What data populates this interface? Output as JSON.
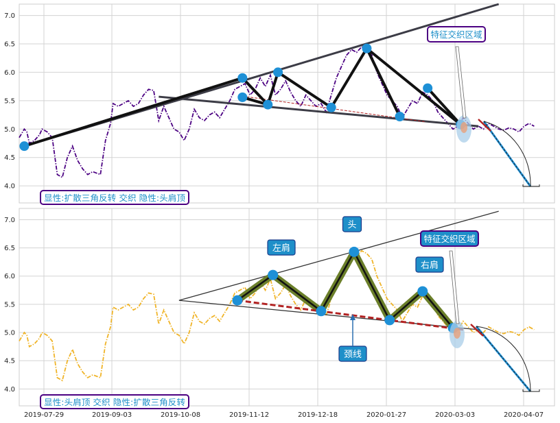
{
  "chart_data": [
    {
      "type": "line",
      "panel": "top",
      "ylim": [
        3.7,
        7.2
      ],
      "yticks": [
        "4.0",
        "4.5",
        "5.0",
        "5.5",
        "6.0",
        "6.5",
        "7.0"
      ],
      "grid": true,
      "series": [
        {
          "color": "#4b0082",
          "style": "dash-dot",
          "x": [
            1,
            3,
            4,
            5,
            7,
            9,
            10,
            12,
            14,
            16,
            18,
            20,
            22,
            24,
            26,
            28,
            30,
            33,
            35,
            37,
            38,
            40,
            42,
            44,
            46,
            48,
            50,
            52,
            54,
            56,
            58,
            60,
            62,
            64,
            66,
            68,
            70,
            72,
            74,
            76,
            78,
            80,
            82,
            84,
            86,
            88,
            90,
            92,
            94,
            96,
            98,
            100,
            102,
            104,
            106,
            108,
            110,
            112,
            114,
            116,
            118,
            120,
            122,
            124,
            126,
            128,
            130,
            132,
            134,
            136,
            138,
            140,
            142,
            144,
            146,
            148,
            150,
            152,
            154,
            156,
            158,
            160,
            162,
            164,
            166,
            168,
            170,
            172,
            174,
            176,
            178,
            180,
            182,
            184,
            186,
            188,
            190,
            192,
            194,
            196,
            198,
            200,
            202,
            204
          ],
          "values": [
            4.85,
            5.0,
            4.95,
            4.75,
            4.8,
            4.9,
            5.0,
            4.95,
            4.85,
            4.2,
            4.15,
            4.5,
            4.7,
            4.45,
            4.3,
            4.2,
            4.25,
            4.2,
            4.8,
            5.1,
            5.45,
            5.4,
            5.45,
            5.5,
            5.4,
            5.45,
            5.6,
            5.7,
            5.68,
            5.15,
            5.4,
            5.2,
            5.0,
            4.95,
            4.8,
            5.0,
            5.35,
            5.2,
            5.15,
            5.25,
            5.3,
            5.2,
            5.35,
            5.5,
            5.7,
            5.75,
            5.8,
            5.6,
            5.7,
            5.9,
            5.75,
            5.95,
            5.6,
            5.7,
            5.85,
            5.65,
            5.5,
            5.4,
            5.6,
            5.5,
            5.4,
            5.45,
            5.3,
            5.6,
            5.9,
            6.1,
            6.3,
            6.4,
            6.35,
            6.45,
            6.4,
            6.3,
            6.0,
            5.8,
            5.6,
            5.5,
            5.4,
            5.2,
            5.35,
            5.5,
            5.45,
            5.65,
            5.6,
            5.5,
            5.3,
            5.2,
            5.1,
            5.0,
            5.05,
            5.2,
            5.1,
            5.0,
            5.05,
            5.0,
            5.1,
            5.05,
            5.0,
            4.98,
            5.02,
            5.0,
            4.95,
            5.05,
            5.1,
            5.05
          ]
        }
      ],
      "label_box": "显性:扩散三角反转 交织 隐性:头肩顶",
      "callout": "特征交织区域"
    },
    {
      "type": "line",
      "panel": "bottom",
      "ylim": [
        3.7,
        7.2
      ],
      "yticks": [
        "4.0",
        "4.5",
        "5.0",
        "5.5",
        "6.0",
        "6.5",
        "7.0"
      ],
      "xticks": [
        "2019-07-29",
        "2019-09-03",
        "2019-10-08",
        "2019-11-12",
        "2019-12-18",
        "2020-01-27",
        "2020-03-03",
        "2020-04-07"
      ],
      "grid": true,
      "series": [
        {
          "color": "#f0b428",
          "style": "dash-dot",
          "x": [
            1,
            3,
            4,
            5,
            7,
            9,
            10,
            12,
            14,
            16,
            18,
            20,
            22,
            24,
            26,
            28,
            30,
            33,
            35,
            37,
            38,
            40,
            42,
            44,
            46,
            48,
            50,
            52,
            54,
            56,
            58,
            60,
            62,
            64,
            66,
            68,
            70,
            72,
            74,
            76,
            78,
            80,
            82,
            84,
            86,
            88,
            90,
            92,
            94,
            96,
            98,
            100,
            102,
            104,
            106,
            108,
            110,
            112,
            114,
            116,
            118,
            120,
            122,
            124,
            126,
            128,
            130,
            132,
            134,
            136,
            138,
            140,
            142,
            144,
            146,
            148,
            150,
            152,
            154,
            156,
            158,
            160,
            162,
            164,
            166,
            168,
            170,
            172,
            174,
            176,
            178,
            180,
            182,
            184,
            186,
            188,
            190,
            192,
            194,
            196,
            198,
            200,
            202,
            204
          ],
          "values": [
            4.85,
            5.0,
            4.95,
            4.75,
            4.8,
            4.9,
            5.0,
            4.95,
            4.85,
            4.2,
            4.15,
            4.5,
            4.7,
            4.45,
            4.3,
            4.2,
            4.25,
            4.2,
            4.8,
            5.1,
            5.45,
            5.4,
            5.45,
            5.5,
            5.4,
            5.45,
            5.6,
            5.7,
            5.68,
            5.15,
            5.4,
            5.2,
            5.0,
            4.95,
            4.8,
            5.0,
            5.35,
            5.2,
            5.15,
            5.25,
            5.3,
            5.2,
            5.35,
            5.5,
            5.7,
            5.75,
            5.8,
            5.6,
            5.7,
            5.9,
            5.75,
            5.95,
            5.6,
            5.7,
            5.85,
            5.65,
            5.5,
            5.4,
            5.6,
            5.5,
            5.4,
            5.45,
            5.3,
            5.6,
            5.9,
            6.1,
            6.3,
            6.4,
            6.35,
            6.45,
            6.4,
            6.3,
            6.0,
            5.8,
            5.6,
            5.5,
            5.4,
            5.2,
            5.35,
            5.5,
            5.45,
            5.65,
            5.6,
            5.5,
            5.3,
            5.2,
            5.1,
            5.0,
            5.05,
            5.2,
            5.1,
            5.0,
            5.05,
            5.0,
            5.1,
            5.05,
            5.0,
            4.98,
            5.02,
            5.0,
            4.95,
            5.05,
            5.1,
            5.05
          ]
        }
      ],
      "label_box": "显性:头肩顶 交织 隐性:扩散三角反转",
      "callout": "特征交织区域",
      "pattern_labels": {
        "left_shoulder": "左肩",
        "head": "头",
        "right_shoulder": "右肩",
        "neckline": "颈线"
      }
    }
  ],
  "colors": {
    "top_series": "#4b0082",
    "bottom_series": "#f0b428",
    "pivot_marker": "#1e90d6",
    "label_border": "#4b0082",
    "label_text": "#1e8fc9",
    "pattern_label_bg": "#1e8fc9",
    "shoulder_band": "#6b7f2a"
  }
}
